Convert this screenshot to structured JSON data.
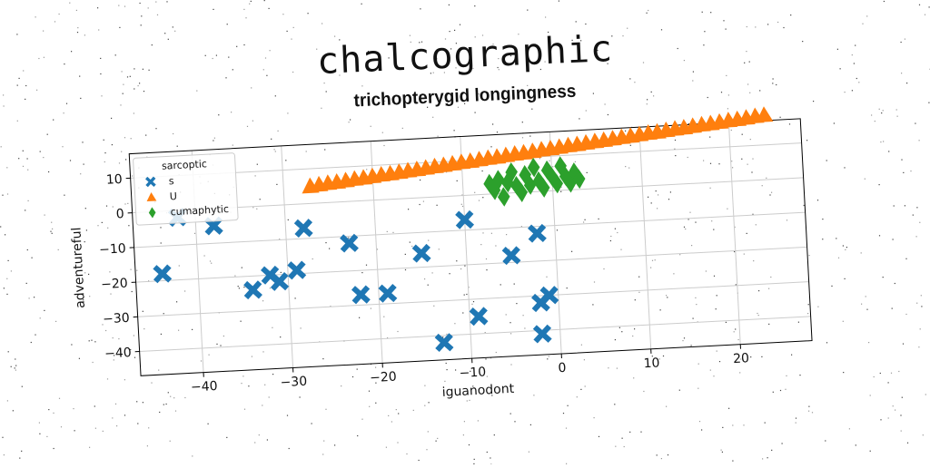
{
  "title": "chalcographic",
  "subtitle": "trichopterygid longingness",
  "chart_data": {
    "type": "scatter",
    "xlabel": "iguanodont",
    "ylabel": "adventureful",
    "xlim": [
      -47,
      28
    ],
    "ylim": [
      -47,
      17
    ],
    "xticks": [
      -40,
      -30,
      -20,
      -10,
      0,
      10,
      20
    ],
    "yticks": [
      -40,
      -30,
      -20,
      -10,
      0,
      10
    ],
    "grid": true,
    "legend": {
      "title": "sarcoptic",
      "position": "top-left"
    },
    "series": [
      {
        "name": "s",
        "marker": "x",
        "color": "#1f77b4",
        "points": [
          [
            -42,
            -2
          ],
          [
            -38,
            -5
          ],
          [
            -44,
            -18
          ],
          [
            -34,
            -24
          ],
          [
            -32,
            -20
          ],
          [
            -31,
            -22
          ],
          [
            -29,
            -19
          ],
          [
            -28,
            -7
          ],
          [
            -23,
            -12
          ],
          [
            -22,
            -27
          ],
          [
            -19,
            -27
          ],
          [
            -15,
            -16
          ],
          [
            -13,
            -42
          ],
          [
            -10,
            -7
          ],
          [
            -9,
            -35
          ],
          [
            -5,
            -18
          ],
          [
            -2,
            -12
          ],
          [
            -2,
            -32
          ],
          [
            -1,
            -30
          ],
          [
            -2,
            -41
          ]
        ]
      },
      {
        "name": "U",
        "marker": "triangle",
        "color": "#ff7f0e",
        "points": [
          [
            -27,
            5
          ],
          [
            -26,
            5.3
          ],
          [
            -25,
            5.6
          ],
          [
            -24,
            5.8
          ],
          [
            -23,
            6.1
          ],
          [
            -22,
            6.4
          ],
          [
            -21,
            6.6
          ],
          [
            -20,
            6.9
          ],
          [
            -19,
            7.2
          ],
          [
            -18,
            7.4
          ],
          [
            -17,
            7.7
          ],
          [
            -16,
            8.0
          ],
          [
            -15,
            8.2
          ],
          [
            -14,
            8.5
          ],
          [
            -13,
            8.8
          ],
          [
            -12,
            9.0
          ],
          [
            -11,
            9.3
          ],
          [
            -10,
            9.6
          ],
          [
            -9,
            9.8
          ],
          [
            -8,
            10.1
          ],
          [
            -7,
            10.4
          ],
          [
            -6,
            10.6
          ],
          [
            -5,
            10.9
          ],
          [
            -4,
            11.2
          ],
          [
            -3,
            11.4
          ],
          [
            -2,
            11.7
          ],
          [
            -1,
            12.0
          ],
          [
            0,
            12.2
          ],
          [
            1,
            12.5
          ],
          [
            2,
            12.8
          ],
          [
            3,
            13.0
          ],
          [
            4,
            13.3
          ],
          [
            5,
            13.6
          ],
          [
            6,
            13.8
          ],
          [
            7,
            14.1
          ],
          [
            8,
            14.4
          ],
          [
            9,
            14.6
          ],
          [
            10,
            14.9
          ],
          [
            11,
            15.2
          ],
          [
            12,
            15.4
          ],
          [
            13,
            15.7
          ],
          [
            14,
            16.0
          ],
          [
            15,
            16.2
          ],
          [
            16,
            16.5
          ],
          [
            17,
            16.8
          ],
          [
            18,
            17.0
          ],
          [
            19,
            17.3
          ],
          [
            20,
            17.6
          ],
          [
            21,
            17.8
          ],
          [
            22,
            18.1
          ],
          [
            23,
            18.4
          ],
          [
            24,
            18.6
          ]
        ]
      },
      {
        "name": "cumaphytic",
        "marker": "diamond",
        "color": "#2ca02c",
        "points": [
          [
            -7,
            3
          ],
          [
            -6.5,
            1
          ],
          [
            -6,
            4
          ],
          [
            -5.5,
            -1
          ],
          [
            -5,
            3
          ],
          [
            -4.5,
            6
          ],
          [
            -4,
            2
          ],
          [
            -3.5,
            0
          ],
          [
            -3,
            5
          ],
          [
            -2.5,
            2
          ],
          [
            -2,
            7
          ],
          [
            -1.5,
            3
          ],
          [
            -1,
            1
          ],
          [
            -0.5,
            6
          ],
          [
            0,
            4
          ],
          [
            0.5,
            2
          ],
          [
            1,
            7
          ],
          [
            1.5,
            4
          ],
          [
            2,
            2
          ],
          [
            2.5,
            5
          ],
          [
            3,
            3
          ]
        ]
      }
    ]
  }
}
